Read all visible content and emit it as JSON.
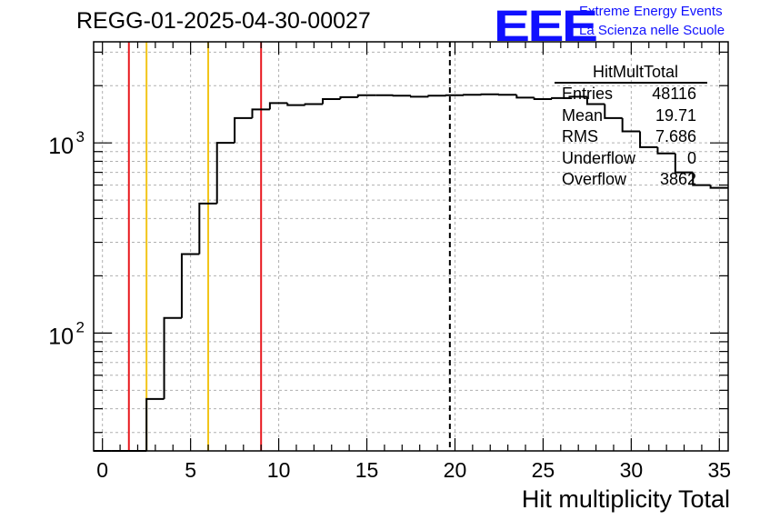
{
  "header": {
    "run_title": "REGG-01-2025-04-30-00027",
    "logo_text": "EEE",
    "logo_line1": "Extreme Energy Events",
    "logo_line2": "La Scienza nelle Scuole"
  },
  "stats_box": {
    "title": "HitMultTotal",
    "rows": [
      {
        "label": "Entries",
        "value": "48116"
      },
      {
        "label": "Mean",
        "value": "19.71"
      },
      {
        "label": "RMS",
        "value": "7.686"
      },
      {
        "label": "Underflow",
        "value": "0"
      },
      {
        "label": "Overflow",
        "value": "3862"
      }
    ]
  },
  "colors": {
    "histogram": "#000000",
    "red_line": "#e8181e",
    "yellow_line": "#f2c418",
    "mean_line": "#000000",
    "grid": "#b0b0b0",
    "logo": "#1010ff"
  },
  "chart_data": {
    "type": "histogram",
    "title": "REGG-01-2025-04-30-00027",
    "xlabel": "Hit multiplicity Total",
    "ylabel": "",
    "y_scale": "log",
    "xlim": [
      -0.5,
      35.5
    ],
    "ylim": [
      24,
      3400
    ],
    "grid": true,
    "x_ticks": [
      0,
      5,
      10,
      15,
      20,
      25,
      30,
      35
    ],
    "x_tick_labels": [
      "0",
      "5",
      "10",
      "15",
      "20",
      "25",
      "30",
      "35"
    ],
    "y_major_ticks": [
      100,
      1000
    ],
    "y_tick_labels": [
      {
        "base": "10",
        "exp": "2",
        "value": 100
      },
      {
        "base": "10",
        "exp": "3",
        "value": 1000
      }
    ],
    "bin_edges": [
      -0.5,
      0.5,
      1.5,
      2.5,
      3.5,
      4.5,
      5.5,
      6.5,
      7.5,
      8.5,
      9.5,
      10.5,
      11.5,
      12.5,
      13.5,
      14.5,
      15.5,
      16.5,
      17.5,
      18.5,
      19.5,
      20.5,
      21.5,
      22.5,
      23.5,
      24.5,
      25.5,
      26.5,
      27.5,
      28.5,
      29.5,
      30.5,
      31.5,
      32.5,
      33.5,
      34.5,
      35.5
    ],
    "bin_counts": [
      0,
      0,
      0,
      45,
      120,
      260,
      480,
      1000,
      1350,
      1500,
      1620,
      1580,
      1600,
      1700,
      1740,
      1780,
      1780,
      1770,
      1750,
      1770,
      1780,
      1790,
      1800,
      1790,
      1730,
      1700,
      1720,
      1750,
      1600,
      1350,
      1150,
      950,
      880,
      700,
      600,
      580
    ],
    "vertical_lines": [
      {
        "x": 1.5,
        "color": "red",
        "style": "solid"
      },
      {
        "x": 2.5,
        "color": "yellow",
        "style": "solid"
      },
      {
        "x": 6.0,
        "color": "yellow",
        "style": "solid"
      },
      {
        "x": 9.0,
        "color": "red",
        "style": "solid"
      },
      {
        "x": 19.71,
        "color": "black",
        "style": "dashed"
      }
    ]
  }
}
